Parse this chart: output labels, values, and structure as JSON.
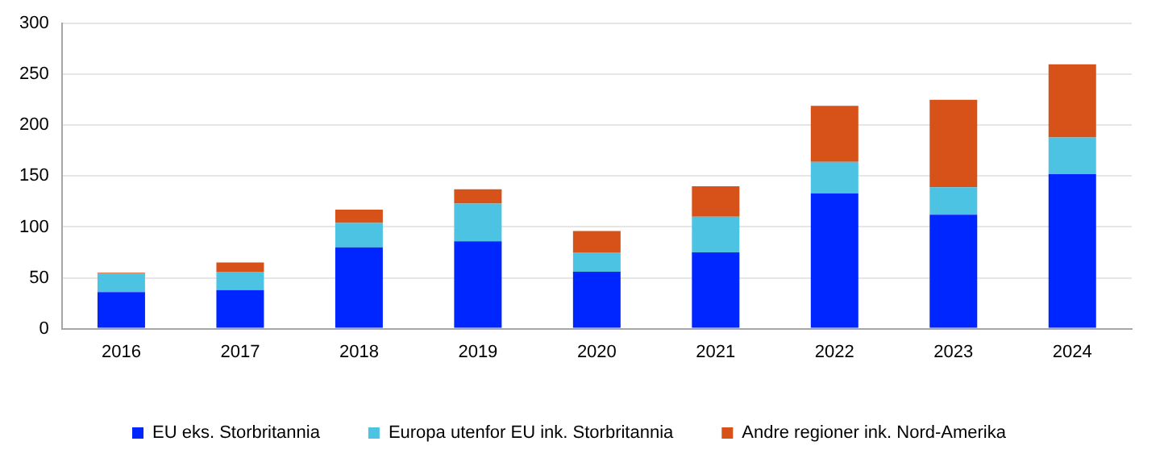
{
  "chart_data": {
    "type": "bar",
    "stacked": true,
    "categories": [
      "2016",
      "2017",
      "2018",
      "2019",
      "2020",
      "2021",
      "2022",
      "2023",
      "2024"
    ],
    "series": [
      {
        "name": "EU eks. Storbritannia",
        "color": "#0026ff",
        "values": [
          36,
          38,
          80,
          86,
          56,
          75,
          133,
          112,
          152
        ]
      },
      {
        "name": "Europa utenfor EU ink. Storbritannia",
        "color": "#4dc3e3",
        "values": [
          18,
          18,
          24,
          37,
          19,
          35,
          31,
          27,
          36
        ]
      },
      {
        "name": "Andre regioner ink. Nord-Amerika",
        "color": "#d75219",
        "values": [
          1,
          9,
          13,
          14,
          21,
          30,
          55,
          86,
          72
        ]
      }
    ],
    "ylim": [
      0,
      300
    ],
    "yticks": [
      0,
      50,
      100,
      150,
      200,
      250,
      300
    ],
    "grid": "y",
    "legend": "bottom"
  }
}
